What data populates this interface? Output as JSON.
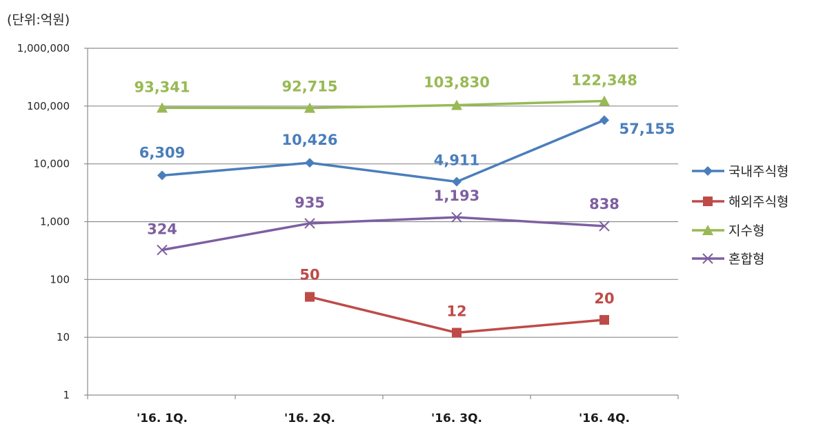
{
  "unit_label": "(단위:억원)",
  "chart_data": {
    "type": "line",
    "title": "",
    "xlabel": "",
    "ylabel": "",
    "yscale": "log",
    "ylim": [
      1,
      1000000
    ],
    "yticks": [
      1,
      10,
      100,
      1000,
      10000,
      100000,
      1000000
    ],
    "ytick_labels": [
      "1",
      "10",
      "100",
      "1,000",
      "10,000",
      "100,000",
      "1,000,000"
    ],
    "categories": [
      "'16. 1Q.",
      "'16. 2Q.",
      "'16. 3Q.",
      "'16. 4Q."
    ],
    "legend_position": "right",
    "grid": true,
    "series": [
      {
        "name": "국내주식형",
        "color": "#4a7ebb",
        "marker": "diamond",
        "values": [
          6309,
          10426,
          4911,
          57155
        ],
        "labels": [
          "6,309",
          "10,426",
          "4,911",
          "57,155"
        ]
      },
      {
        "name": "해외주식형",
        "color": "#be4b48",
        "marker": "square",
        "values": [
          null,
          50,
          12,
          20
        ],
        "labels": [
          null,
          "50",
          "12",
          "20"
        ]
      },
      {
        "name": "지수형",
        "color": "#98b954",
        "marker": "triangle",
        "values": [
          93341,
          92715,
          103830,
          122348
        ],
        "labels": [
          "93,341",
          "92,715",
          "103,830",
          "122,348"
        ]
      },
      {
        "name": "혼합형",
        "color": "#7d5fa0",
        "marker": "x",
        "values": [
          324,
          935,
          1193,
          838
        ],
        "labels": [
          "324",
          "935",
          "1,193",
          "838"
        ]
      }
    ]
  }
}
